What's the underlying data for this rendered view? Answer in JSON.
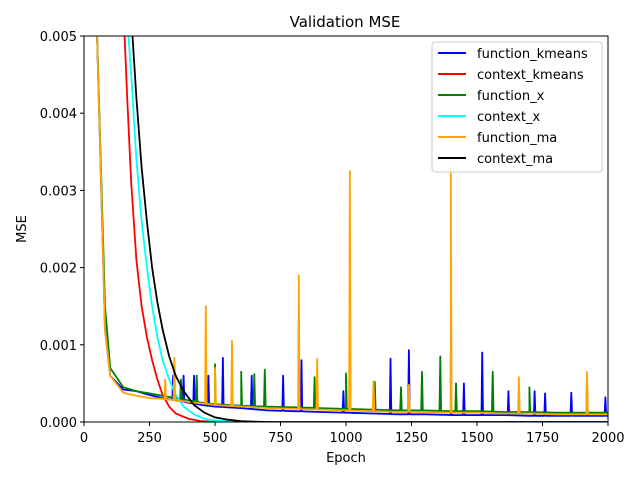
{
  "chart_data": {
    "type": "line",
    "title": "Validation MSE",
    "xlabel": "Epoch",
    "ylabel": "MSE",
    "xlim": [
      0,
      2000
    ],
    "ylim": [
      0,
      0.005
    ],
    "xticks": [
      0,
      250,
      500,
      750,
      1000,
      1250,
      1500,
      1750,
      2000
    ],
    "xtick_labels": [
      "0",
      "250",
      "500",
      "750",
      "1000",
      "1250",
      "1500",
      "1750",
      "2000"
    ],
    "yticks": [
      0,
      0.001,
      0.002,
      0.003,
      0.004,
      0.005
    ],
    "ytick_labels": [
      "0.000",
      "0.001",
      "0.002",
      "0.003",
      "0.004",
      "0.005"
    ],
    "grid": false,
    "legend_position": "top-right",
    "series": [
      {
        "name": "function_kmeans",
        "color": "#0000ff",
        "x": [
          50,
          80,
          100,
          150,
          200,
          250,
          300,
          350,
          400,
          450,
          500,
          600,
          700,
          800,
          900,
          1000,
          1100,
          1200,
          1300,
          1400,
          1500,
          1600,
          1700,
          1800,
          1900,
          2000
        ],
        "y": [
          0.005,
          0.0012,
          0.0006,
          0.00042,
          0.0004,
          0.00035,
          0.00031,
          0.00028,
          0.00025,
          0.00022,
          0.0002,
          0.00018,
          0.00015,
          0.00014,
          0.00013,
          0.00012,
          0.00011,
          0.0001,
          0.0001,
          9e-05,
          9e-05,
          9e-05,
          8e-05,
          8e-05,
          8e-05,
          8e-05
        ],
        "spikes": [
          [
            340,
            0.0006
          ],
          [
            380,
            0.0006
          ],
          [
            420,
            0.0006
          ],
          [
            475,
            0.0006
          ],
          [
            530,
            0.00083
          ],
          [
            640,
            0.0006
          ],
          [
            760,
            0.0006
          ],
          [
            830,
            0.0008
          ],
          [
            990,
            0.0004
          ],
          [
            1170,
            0.00082
          ],
          [
            1240,
            0.00093
          ],
          [
            1400,
            0.00088
          ],
          [
            1450,
            0.0005
          ],
          [
            1520,
            0.0009
          ],
          [
            1620,
            0.0004
          ],
          [
            1720,
            0.0004
          ],
          [
            1760,
            0.00037
          ],
          [
            1860,
            0.00038
          ],
          [
            1990,
            0.00032
          ]
        ]
      },
      {
        "name": "context_kmeans",
        "color": "#ff0000",
        "x": [
          155,
          165,
          180,
          200,
          220,
          240,
          260,
          280,
          300,
          325,
          350,
          400,
          450,
          500,
          600,
          700,
          1000,
          2000
        ],
        "y": [
          0.005,
          0.0042,
          0.0031,
          0.0021,
          0.0015,
          0.0011,
          0.0008,
          0.00055,
          0.00035,
          0.0002,
          0.00011,
          4e-05,
          1e-05,
          0.0,
          0.0,
          0.0,
          0.0,
          0.0
        ],
        "spikes": []
      },
      {
        "name": "function_x",
        "color": "#008000",
        "x": [
          50,
          80,
          100,
          150,
          200,
          250,
          300,
          350,
          400,
          450,
          500,
          600,
          700,
          800,
          900,
          1000,
          1100,
          1200,
          1300,
          1400,
          1500,
          1600,
          1700,
          1800,
          1900,
          2000
        ],
        "y": [
          0.005,
          0.0015,
          0.0007,
          0.00045,
          0.0004,
          0.00037,
          0.00034,
          0.00031,
          0.00028,
          0.00025,
          0.00023,
          0.00021,
          0.0002,
          0.00019,
          0.00018,
          0.00017,
          0.00016,
          0.00015,
          0.00015,
          0.00014,
          0.00014,
          0.00013,
          0.00013,
          0.00012,
          0.00012,
          0.00012
        ],
        "spikes": [
          [
            370,
            0.00055
          ],
          [
            430,
            0.0006
          ],
          [
            500,
            0.00075
          ],
          [
            600,
            0.00065
          ],
          [
            650,
            0.00062
          ],
          [
            690,
            0.00068
          ],
          [
            880,
            0.00058
          ],
          [
            1000,
            0.00063
          ],
          [
            1110,
            0.00052
          ],
          [
            1210,
            0.00045
          ],
          [
            1290,
            0.00065
          ],
          [
            1360,
            0.00085
          ],
          [
            1420,
            0.0005
          ],
          [
            1560,
            0.00065
          ],
          [
            1700,
            0.00045
          ],
          [
            1920,
            0.00058
          ]
        ]
      },
      {
        "name": "context_x",
        "color": "#00ffff",
        "x": [
          170,
          180,
          200,
          220,
          240,
          260,
          280,
          300,
          325,
          350,
          380,
          420,
          460,
          500,
          600,
          700,
          1000,
          2000
        ],
        "y": [
          0.005,
          0.0045,
          0.0034,
          0.0026,
          0.002,
          0.0015,
          0.0011,
          0.0008,
          0.00055,
          0.00035,
          0.0002,
          0.0001,
          4e-05,
          2e-05,
          0.0,
          0.0,
          0.0,
          0.0
        ],
        "spikes": []
      },
      {
        "name": "function_ma",
        "color": "#ffa500",
        "x": [
          50,
          80,
          100,
          150,
          200,
          250,
          300,
          350,
          400,
          450,
          500,
          600,
          700,
          800,
          900,
          1000,
          1100,
          1200,
          1300,
          1400,
          1500,
          1600,
          1700,
          1800,
          1900,
          2000
        ],
        "y": [
          0.005,
          0.0012,
          0.0006,
          0.00038,
          0.00034,
          0.00031,
          0.0003,
          0.00028,
          0.00026,
          0.00024,
          0.00022,
          0.0002,
          0.00018,
          0.00017,
          0.00016,
          0.00015,
          0.00014,
          0.00013,
          0.00013,
          0.00012,
          0.00012,
          0.00011,
          0.00011,
          0.0001,
          0.0001,
          0.0001
        ],
        "spikes": [
          [
            310,
            0.00055
          ],
          [
            345,
            0.00083
          ],
          [
            465,
            0.0015
          ],
          [
            500,
            0.0007
          ],
          [
            565,
            0.00105
          ],
          [
            820,
            0.0019
          ],
          [
            890,
            0.00082
          ],
          [
            1015,
            0.00325
          ],
          [
            1105,
            0.00053
          ],
          [
            1240,
            0.00048
          ],
          [
            1400,
            0.0033
          ],
          [
            1660,
            0.00058
          ],
          [
            1920,
            0.00065
          ]
        ]
      },
      {
        "name": "context_ma",
        "color": "#000000",
        "x": [
          185,
          200,
          220,
          240,
          260,
          280,
          300,
          325,
          350,
          380,
          420,
          460,
          500,
          550,
          600,
          700,
          1000,
          2000
        ],
        "y": [
          0.005,
          0.0042,
          0.0033,
          0.0026,
          0.002,
          0.00155,
          0.0012,
          0.00085,
          0.0006,
          0.0004,
          0.00022,
          0.00012,
          6e-05,
          3e-05,
          1e-05,
          0.0,
          0.0,
          0.0
        ],
        "spikes": []
      }
    ]
  }
}
